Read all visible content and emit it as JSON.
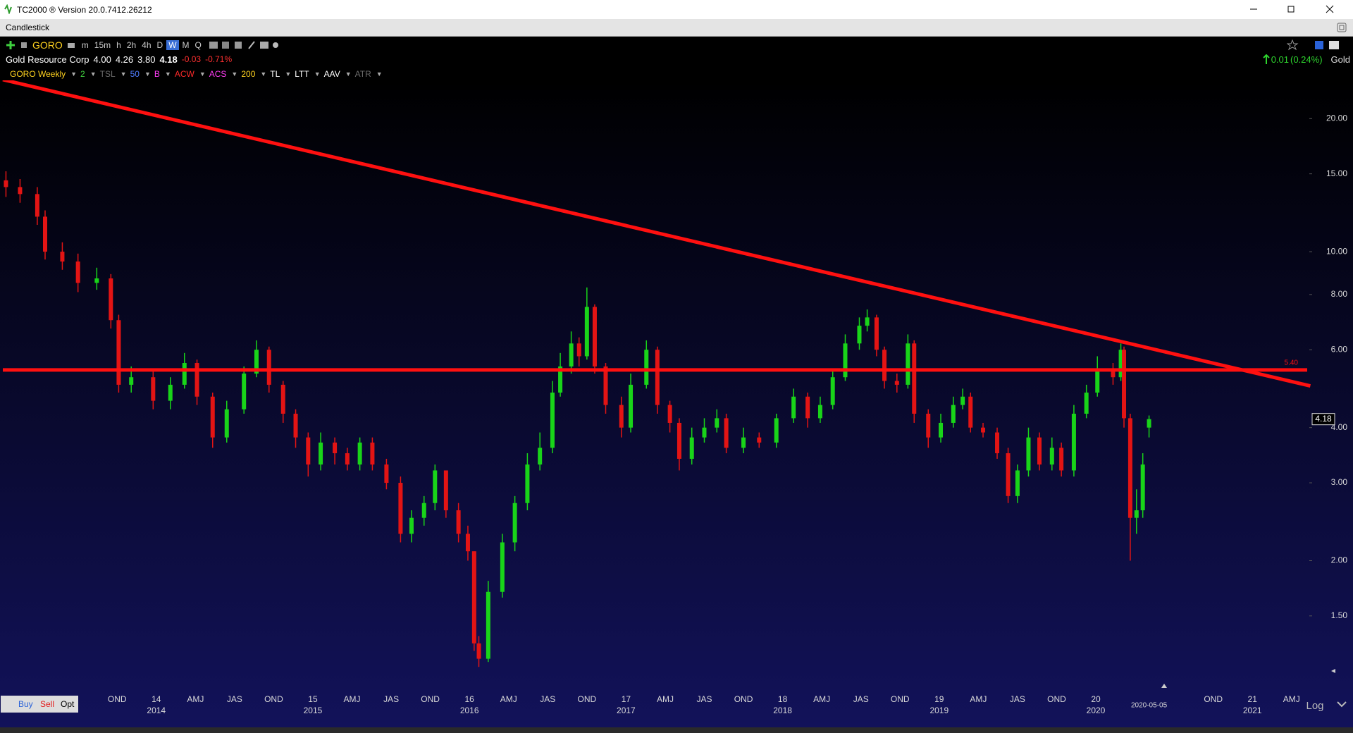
{
  "window": {
    "title": "TC2000 ® Version 20.0.7412.26212"
  },
  "panel": {
    "title": "Candlestick"
  },
  "toolbar": {
    "symbol": "GORO",
    "intervals": [
      "m",
      "15m",
      "h",
      "2h",
      "4h",
      "D",
      "W",
      "M",
      "Q"
    ],
    "selected_index": 6
  },
  "quote": {
    "name": "Gold Resource Corp",
    "open": "4.00",
    "high": "4.26",
    "low": "3.80",
    "last": "4.18",
    "change": "-0.03",
    "change_pct": "-0.71%"
  },
  "summary": {
    "change": "0.01",
    "change_pct": "(0.24%)",
    "watchlist": "Gold"
  },
  "indicators": [
    {
      "label": "GORO Weekly",
      "color": "#ffd21f"
    },
    {
      "label": "2",
      "color": "#3fd13f"
    },
    {
      "label": "TSL",
      "color": "#6b6b6b"
    },
    {
      "label": "50",
      "color": "#4f7dff"
    },
    {
      "label": "B",
      "color": "#ff3df5"
    },
    {
      "label": "ACW",
      "color": "#ff2a2a"
    },
    {
      "label": "ACS",
      "color": "#ff3df5"
    },
    {
      "label": "200",
      "color": "#ffd21f"
    },
    {
      "label": "TL",
      "color": "#ffffff"
    },
    {
      "label": "LTT",
      "color": "#ffffff"
    },
    {
      "label": "AAV",
      "color": "#ffffff"
    },
    {
      "label": "ATR",
      "color": "#6b6b6b"
    }
  ],
  "footer": {
    "buy": "Buy",
    "sell": "Sell",
    "opt": "Opt",
    "scale": "Log"
  },
  "chart_data": {
    "type": "candlestick",
    "log_scale": true,
    "up_color": "#19d419",
    "down_color": "#e31414",
    "x": [
      2013.04,
      2013.13,
      2013.24,
      2013.29,
      2013.4,
      2013.5,
      2013.62,
      2013.71,
      2013.76,
      2013.84,
      2013.98,
      2014.09,
      2014.18,
      2014.26,
      2014.36,
      2014.45,
      2014.56,
      2014.64,
      2014.72,
      2014.81,
      2014.89,
      2014.97,
      2015.05,
      2015.14,
      2015.22,
      2015.3,
      2015.38,
      2015.47,
      2015.56,
      2015.63,
      2015.71,
      2015.78,
      2015.85,
      2015.93,
      2015.99,
      2016.03,
      2016.06,
      2016.12,
      2016.21,
      2016.29,
      2016.37,
      2016.45,
      2016.53,
      2016.58,
      2016.65,
      2016.7,
      2016.75,
      2016.8,
      2016.87,
      2016.97,
      2017.03,
      2017.13,
      2017.2,
      2017.28,
      2017.34,
      2017.42,
      2017.5,
      2017.58,
      2017.64,
      2017.75,
      2017.85,
      2017.96,
      2018.07,
      2018.16,
      2018.24,
      2018.32,
      2018.4,
      2018.49,
      2018.54,
      2018.6,
      2018.65,
      2018.73,
      2018.8,
      2018.84,
      2018.93,
      2019.01,
      2019.09,
      2019.15,
      2019.2,
      2019.28,
      2019.37,
      2019.44,
      2019.5,
      2019.57,
      2019.64,
      2019.72,
      2019.78,
      2019.86,
      2019.94,
      2020.01,
      2020.11,
      2020.16,
      2020.18,
      2020.22,
      2020.26,
      2020.3,
      2020.34
    ],
    "open": [
      14.5,
      14.0,
      13.5,
      12.0,
      10.0,
      9.5,
      8.5,
      8.7,
      7.0,
      5.0,
      5.2,
      4.6,
      5.0,
      5.6,
      4.7,
      3.8,
      4.4,
      5.3,
      6.0,
      5.0,
      4.3,
      3.8,
      3.3,
      3.7,
      3.5,
      3.3,
      3.7,
      3.3,
      3.0,
      2.3,
      2.5,
      2.7,
      3.2,
      2.6,
      2.3,
      2.1,
      1.3,
      1.2,
      1.7,
      2.2,
      2.7,
      3.3,
      3.6,
      4.8,
      5.5,
      6.2,
      5.8,
      7.5,
      5.5,
      4.5,
      4.0,
      5.0,
      6.0,
      4.5,
      4.1,
      3.4,
      3.8,
      4.0,
      4.2,
      3.6,
      3.8,
      3.7,
      4.2,
      4.7,
      4.2,
      4.5,
      5.2,
      6.2,
      6.8,
      7.1,
      6.0,
      5.1,
      5.0,
      6.2,
      4.3,
      3.8,
      4.1,
      4.5,
      4.7,
      4.0,
      3.9,
      3.5,
      2.8,
      3.2,
      3.8,
      3.3,
      3.6,
      3.2,
      4.3,
      4.8,
      5.4,
      5.2,
      6.0,
      4.2,
      2.5,
      2.6,
      4.0
    ],
    "high": [
      15.2,
      14.6,
      14.0,
      12.4,
      10.5,
      9.9,
      9.2,
      8.9,
      7.2,
      5.5,
      5.4,
      5.2,
      5.9,
      5.7,
      4.8,
      4.6,
      5.5,
      6.3,
      6.1,
      5.1,
      4.4,
      3.9,
      3.9,
      3.8,
      3.6,
      3.8,
      3.8,
      3.4,
      3.1,
      2.6,
      2.8,
      3.3,
      3.2,
      2.7,
      2.4,
      2.1,
      1.35,
      1.8,
      2.3,
      2.8,
      3.5,
      3.9,
      5.1,
      5.9,
      6.6,
      6.4,
      8.3,
      7.6,
      5.6,
      4.7,
      5.3,
      6.3,
      6.1,
      4.6,
      4.2,
      4.0,
      4.2,
      4.4,
      4.3,
      4.0,
      3.9,
      4.3,
      4.9,
      4.8,
      4.7,
      5.4,
      6.5,
      7.1,
      7.4,
      7.2,
      6.1,
      5.3,
      6.5,
      6.3,
      4.4,
      4.3,
      4.7,
      4.9,
      4.8,
      4.1,
      4.0,
      3.6,
      3.3,
      4.0,
      3.9,
      3.8,
      3.7,
      4.5,
      5.0,
      5.8,
      5.6,
      6.2,
      6.1,
      4.3,
      2.9,
      3.5,
      4.26
    ],
    "low": [
      13.3,
      12.9,
      11.5,
      9.6,
      9.1,
      8.1,
      8.2,
      6.7,
      4.8,
      4.8,
      4.4,
      4.4,
      4.9,
      4.5,
      3.6,
      3.7,
      4.3,
      5.2,
      4.8,
      4.1,
      3.6,
      3.1,
      3.2,
      3.3,
      3.2,
      3.2,
      3.2,
      2.9,
      2.2,
      2.2,
      2.4,
      2.6,
      2.5,
      2.2,
      2.0,
      1.25,
      1.15,
      1.18,
      1.65,
      2.1,
      2.6,
      3.2,
      3.5,
      4.7,
      5.3,
      5.5,
      5.7,
      5.3,
      4.3,
      3.8,
      3.9,
      4.9,
      4.3,
      3.9,
      3.2,
      3.3,
      3.7,
      3.9,
      3.5,
      3.5,
      3.6,
      3.6,
      4.1,
      4.0,
      4.1,
      4.4,
      5.1,
      6.0,
      6.6,
      5.8,
      4.9,
      4.8,
      4.9,
      4.1,
      3.6,
      3.7,
      4.0,
      4.4,
      3.9,
      3.8,
      3.4,
      2.7,
      2.7,
      3.1,
      3.2,
      3.2,
      3.1,
      3.1,
      4.2,
      4.7,
      5.0,
      5.1,
      4.0,
      2.0,
      2.3,
      2.5,
      3.8
    ],
    "close": [
      14.0,
      13.5,
      12.0,
      10.0,
      9.5,
      8.5,
      8.7,
      7.0,
      5.0,
      5.2,
      4.6,
      5.0,
      5.6,
      4.7,
      3.8,
      4.4,
      5.3,
      6.0,
      5.0,
      4.3,
      3.8,
      3.3,
      3.7,
      3.5,
      3.3,
      3.7,
      3.3,
      3.0,
      2.3,
      2.5,
      2.7,
      3.2,
      2.6,
      2.3,
      2.1,
      1.3,
      1.2,
      1.7,
      2.2,
      2.7,
      3.3,
      3.6,
      4.8,
      5.5,
      6.2,
      5.8,
      7.5,
      5.5,
      4.5,
      4.0,
      5.0,
      6.0,
      4.5,
      4.1,
      3.4,
      3.8,
      4.0,
      4.2,
      3.6,
      3.8,
      3.7,
      4.2,
      4.7,
      4.2,
      4.5,
      5.2,
      6.2,
      6.8,
      7.1,
      6.0,
      5.1,
      5.0,
      6.2,
      4.3,
      3.8,
      4.1,
      4.5,
      4.7,
      4.0,
      3.9,
      3.5,
      2.8,
      3.2,
      3.8,
      3.3,
      3.6,
      3.2,
      4.3,
      4.8,
      5.4,
      5.2,
      6.0,
      4.2,
      2.5,
      2.6,
      3.3,
      4.18
    ],
    "xlim": [
      2013.02,
      2021.35
    ],
    "ylim": [
      1.05,
      24.5
    ],
    "yticks": [
      {
        "value": 1.5,
        "label": "1.50"
      },
      {
        "value": 2,
        "label": "2.00"
      },
      {
        "value": 3,
        "label": "3.00"
      },
      {
        "value": 4,
        "label": "4.00"
      },
      {
        "value": 6,
        "label": "6.00"
      },
      {
        "value": 8,
        "label": "8.00"
      },
      {
        "value": 10,
        "label": "10.00"
      },
      {
        "value": 15,
        "label": "15.00"
      },
      {
        "value": 20,
        "label": "20.00"
      }
    ],
    "xticks": [
      {
        "value": 2013.75,
        "label": "OND"
      },
      {
        "value": 2014,
        "label": "14"
      },
      {
        "value": 2014.25,
        "label": "AMJ"
      },
      {
        "value": 2014.5,
        "label": "JAS"
      },
      {
        "value": 2014.75,
        "label": "OND"
      },
      {
        "value": 2015,
        "label": "15"
      },
      {
        "value": 2015.25,
        "label": "AMJ"
      },
      {
        "value": 2015.5,
        "label": "JAS"
      },
      {
        "value": 2015.75,
        "label": "OND"
      },
      {
        "value": 2016,
        "label": "16"
      },
      {
        "value": 2016.25,
        "label": "AMJ"
      },
      {
        "value": 2016.5,
        "label": "JAS"
      },
      {
        "value": 2016.75,
        "label": "OND"
      },
      {
        "value": 2017,
        "label": "17"
      },
      {
        "value": 2017.25,
        "label": "AMJ"
      },
      {
        "value": 2017.5,
        "label": "JAS"
      },
      {
        "value": 2017.75,
        "label": "OND"
      },
      {
        "value": 2018,
        "label": "18"
      },
      {
        "value": 2018.25,
        "label": "AMJ"
      },
      {
        "value": 2018.5,
        "label": "JAS"
      },
      {
        "value": 2018.75,
        "label": "OND"
      },
      {
        "value": 2019,
        "label": "19"
      },
      {
        "value": 2019.25,
        "label": "AMJ"
      },
      {
        "value": 2019.5,
        "label": "JAS"
      },
      {
        "value": 2019.75,
        "label": "OND"
      },
      {
        "value": 2020,
        "label": "20"
      },
      {
        "value": 2020.75,
        "label": "OND"
      },
      {
        "value": 2021,
        "label": "21"
      },
      {
        "value": 2021.25,
        "label": "AMJ"
      }
    ],
    "year_ticks": [
      2014,
      2015,
      2016,
      2017,
      2018,
      2019,
      2020,
      2021
    ],
    "date_marker": {
      "value": 2020.34,
      "label": "2020-05-05"
    },
    "trendline": {
      "x": [
        2013.02,
        2021.37
      ],
      "y": [
        24.5,
        4.97
      ],
      "color": "#ff1010"
    },
    "hline": {
      "value": 5.4,
      "label": "5.40",
      "color": "#ff1010"
    }
  }
}
